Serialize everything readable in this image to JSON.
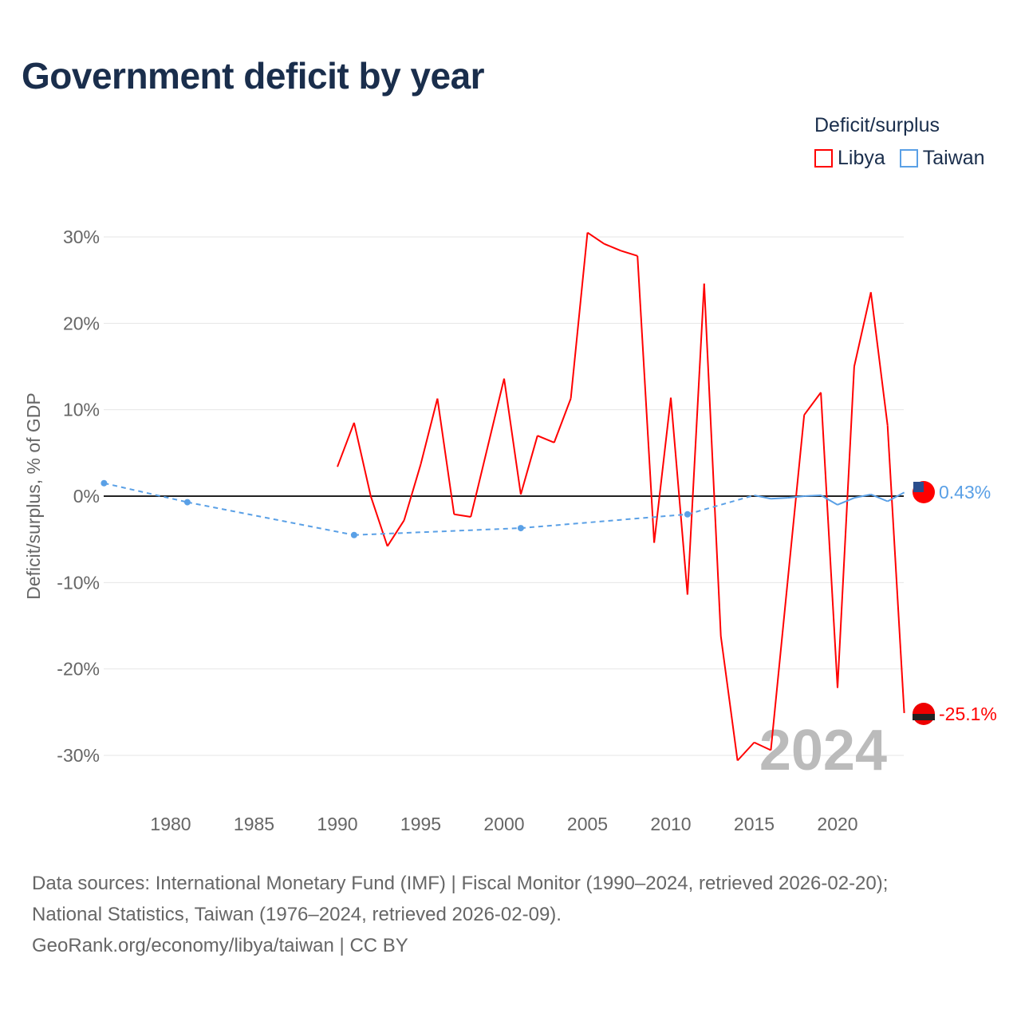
{
  "title": "Government deficit by year",
  "legend": {
    "title": "Deficit/surplus",
    "items": [
      {
        "label": "Libya",
        "color": "#ff0000"
      },
      {
        "label": "Taiwan",
        "color": "#5aa0e6"
      }
    ]
  },
  "year_watermark": "2024",
  "sources": [
    "Data sources: International Monetary Fund (IMF) | Fiscal Monitor (1990–2024, retrieved 2026-02-20);",
    "National Statistics, Taiwan (1976–2024, retrieved 2026-02-09).",
    "GeoRank.org/economy/libya/taiwan | CC BY"
  ],
  "chart_data": {
    "type": "line",
    "ylabel": "Deficit/surplus, % of GDP",
    "ylim": [
      -33,
      33
    ],
    "xlim": [
      1976,
      2024
    ],
    "yticks": [
      30,
      20,
      10,
      0,
      -10,
      -20,
      -30
    ],
    "ytick_labels": [
      "30%",
      "20%",
      "10%",
      "0%",
      "-10%",
      "-20%",
      "-30%"
    ],
    "xticks": [
      1980,
      1985,
      1990,
      1995,
      2000,
      2005,
      2010,
      2015,
      2020
    ],
    "series": [
      {
        "name": "Libya",
        "color": "#ff0000",
        "end_label": "-25.1%",
        "x": [
          1990,
          1991,
          1992,
          1993,
          1994,
          1995,
          1996,
          1997,
          1998,
          1999,
          2000,
          2001,
          2002,
          2003,
          2004,
          2005,
          2006,
          2007,
          2008,
          2009,
          2010,
          2011,
          2012,
          2013,
          2014,
          2015,
          2016,
          2017,
          2018,
          2019,
          2020,
          2021,
          2022,
          2023,
          2024
        ],
        "y": [
          3.4,
          8.5,
          0,
          -5.8,
          -2.8,
          3.7,
          11.3,
          -2.1,
          -2.4,
          5.6,
          13.6,
          0.2,
          7.0,
          6.2,
          11.3,
          30.5,
          29.2,
          28.4,
          27.8,
          -5.4,
          11.4,
          -11.4,
          24.6,
          -16.2,
          -30.6,
          -28.5,
          -29.4,
          -10.0,
          9.4,
          12.0,
          -22.2,
          15.0,
          23.6,
          8.2,
          -25.1
        ]
      },
      {
        "name": "Taiwan",
        "color": "#5aa0e6",
        "end_label": "0.43%",
        "x": [
          1976,
          1981,
          1991,
          2001,
          2011,
          2015,
          2016,
          2017,
          2018,
          2019,
          2020,
          2021,
          2022,
          2023,
          2024
        ],
        "y": [
          1.5,
          -0.7,
          -4.5,
          -3.7,
          -2.1,
          0.1,
          -0.3,
          -0.2,
          0.0,
          0.1,
          -1.0,
          -0.2,
          0.2,
          -0.6,
          0.43
        ]
      }
    ]
  }
}
